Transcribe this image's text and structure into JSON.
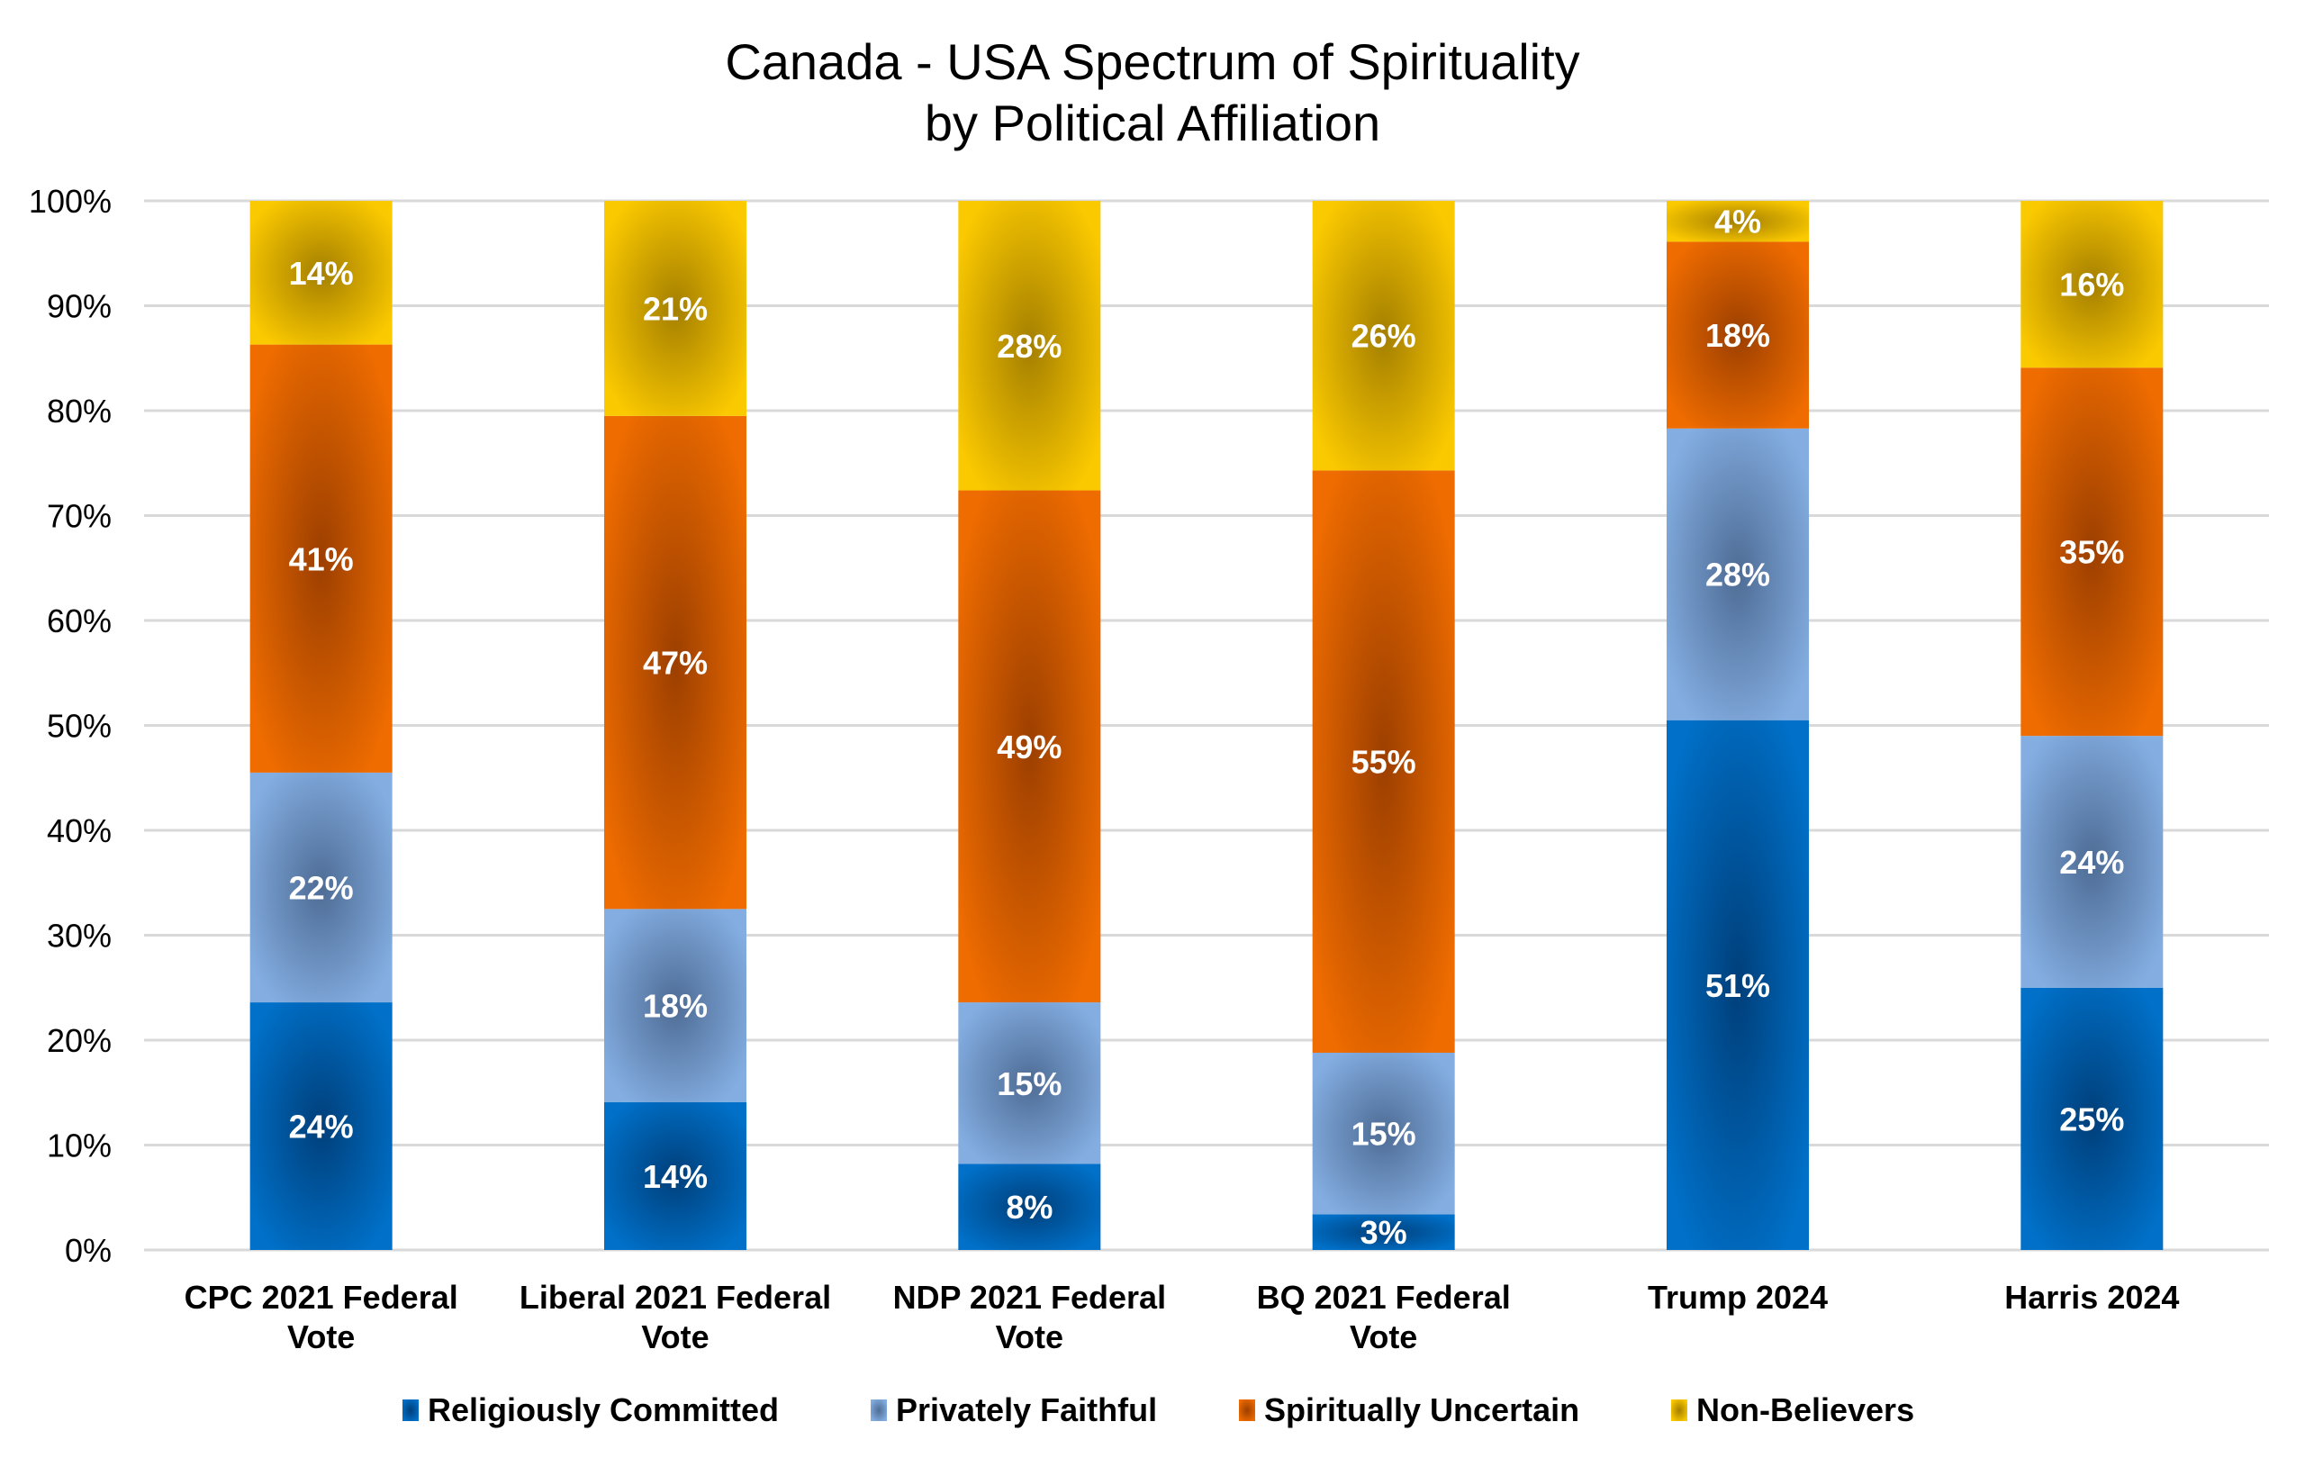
{
  "chart_data": {
    "type": "bar",
    "stacked": true,
    "title": "Canada - USA Spectrum of Spirituality",
    "subtitle": "by Political Affiliation",
    "xlabel": "",
    "ylabel": "",
    "ylim": [
      0,
      100
    ],
    "y_ticks": [
      "0%",
      "10%",
      "20%",
      "30%",
      "40%",
      "50%",
      "60%",
      "70%",
      "80%",
      "90%",
      "100%"
    ],
    "grid": true,
    "legend_position": "bottom",
    "categories": [
      [
        "CPC 2021 Federal",
        "Vote"
      ],
      [
        "Liberal 2021 Federal",
        "Vote"
      ],
      [
        "NDP 2021 Federal",
        "Vote"
      ],
      [
        "BQ 2021 Federal",
        "Vote"
      ],
      [
        "Trump 2024"
      ],
      [
        "Harris 2024"
      ]
    ],
    "series": [
      {
        "name": "Religiously Committed",
        "color": "#0070C8",
        "shade": "#003f7a",
        "values": [
          23.6,
          14.1,
          8.2,
          3.4,
          50.5,
          25.0
        ],
        "labels": [
          "24%",
          "14%",
          "8%",
          "3%",
          "51%",
          "25%"
        ]
      },
      {
        "name": "Privately Faithful",
        "color": "#84AEE2",
        "shade": "#4e6c95",
        "values": [
          21.9,
          18.4,
          15.4,
          15.4,
          27.8,
          24.0
        ],
        "labels": [
          "22%",
          "18%",
          "15%",
          "15%",
          "28%",
          "24%"
        ]
      },
      {
        "name": "Spiritually Uncertain",
        "color": "#EF6C00",
        "shade": "#9c3f00",
        "values": [
          40.8,
          47.0,
          48.8,
          55.5,
          17.8,
          35.1
        ],
        "labels": [
          "41%",
          "47%",
          "49%",
          "55%",
          "18%",
          "35%"
        ]
      },
      {
        "name": "Non-Believers",
        "color": "#FBC900",
        "shade": "#a47f00",
        "values": [
          13.7,
          20.5,
          27.6,
          25.7,
          3.9,
          15.9
        ],
        "labels": [
          "14%",
          "21%",
          "28%",
          "26%",
          "4%",
          "16%"
        ]
      }
    ]
  }
}
